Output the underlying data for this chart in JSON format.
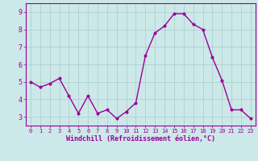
{
  "x": [
    0,
    1,
    2,
    3,
    4,
    5,
    6,
    7,
    8,
    9,
    10,
    11,
    12,
    13,
    14,
    15,
    16,
    17,
    18,
    19,
    20,
    21,
    22,
    23
  ],
  "y": [
    5.0,
    4.7,
    4.9,
    5.2,
    4.2,
    3.2,
    4.2,
    3.2,
    3.4,
    2.9,
    3.3,
    3.8,
    6.5,
    7.8,
    8.2,
    8.9,
    8.9,
    8.3,
    8.0,
    6.4,
    5.1,
    3.4,
    3.4,
    2.9
  ],
  "line_color": "#990099",
  "marker_color": "#990099",
  "bg_color": "#cce8e8",
  "grid_color": "#aacccc",
  "axis_color": "#990099",
  "xlabel": "Windchill (Refroidissement éolien,°C)",
  "xlim": [
    -0.5,
    23.5
  ],
  "ylim": [
    2.5,
    9.5
  ],
  "yticks": [
    3,
    4,
    5,
    6,
    7,
    8,
    9
  ],
  "xticks": [
    0,
    1,
    2,
    3,
    4,
    5,
    6,
    7,
    8,
    9,
    10,
    11,
    12,
    13,
    14,
    15,
    16,
    17,
    18,
    19,
    20,
    21,
    22,
    23
  ],
  "tick_color": "#990099",
  "line_width": 1.0,
  "marker_size": 2.5,
  "xtick_fontsize": 5.0,
  "ytick_fontsize": 6.0,
  "xlabel_fontsize": 6.0
}
